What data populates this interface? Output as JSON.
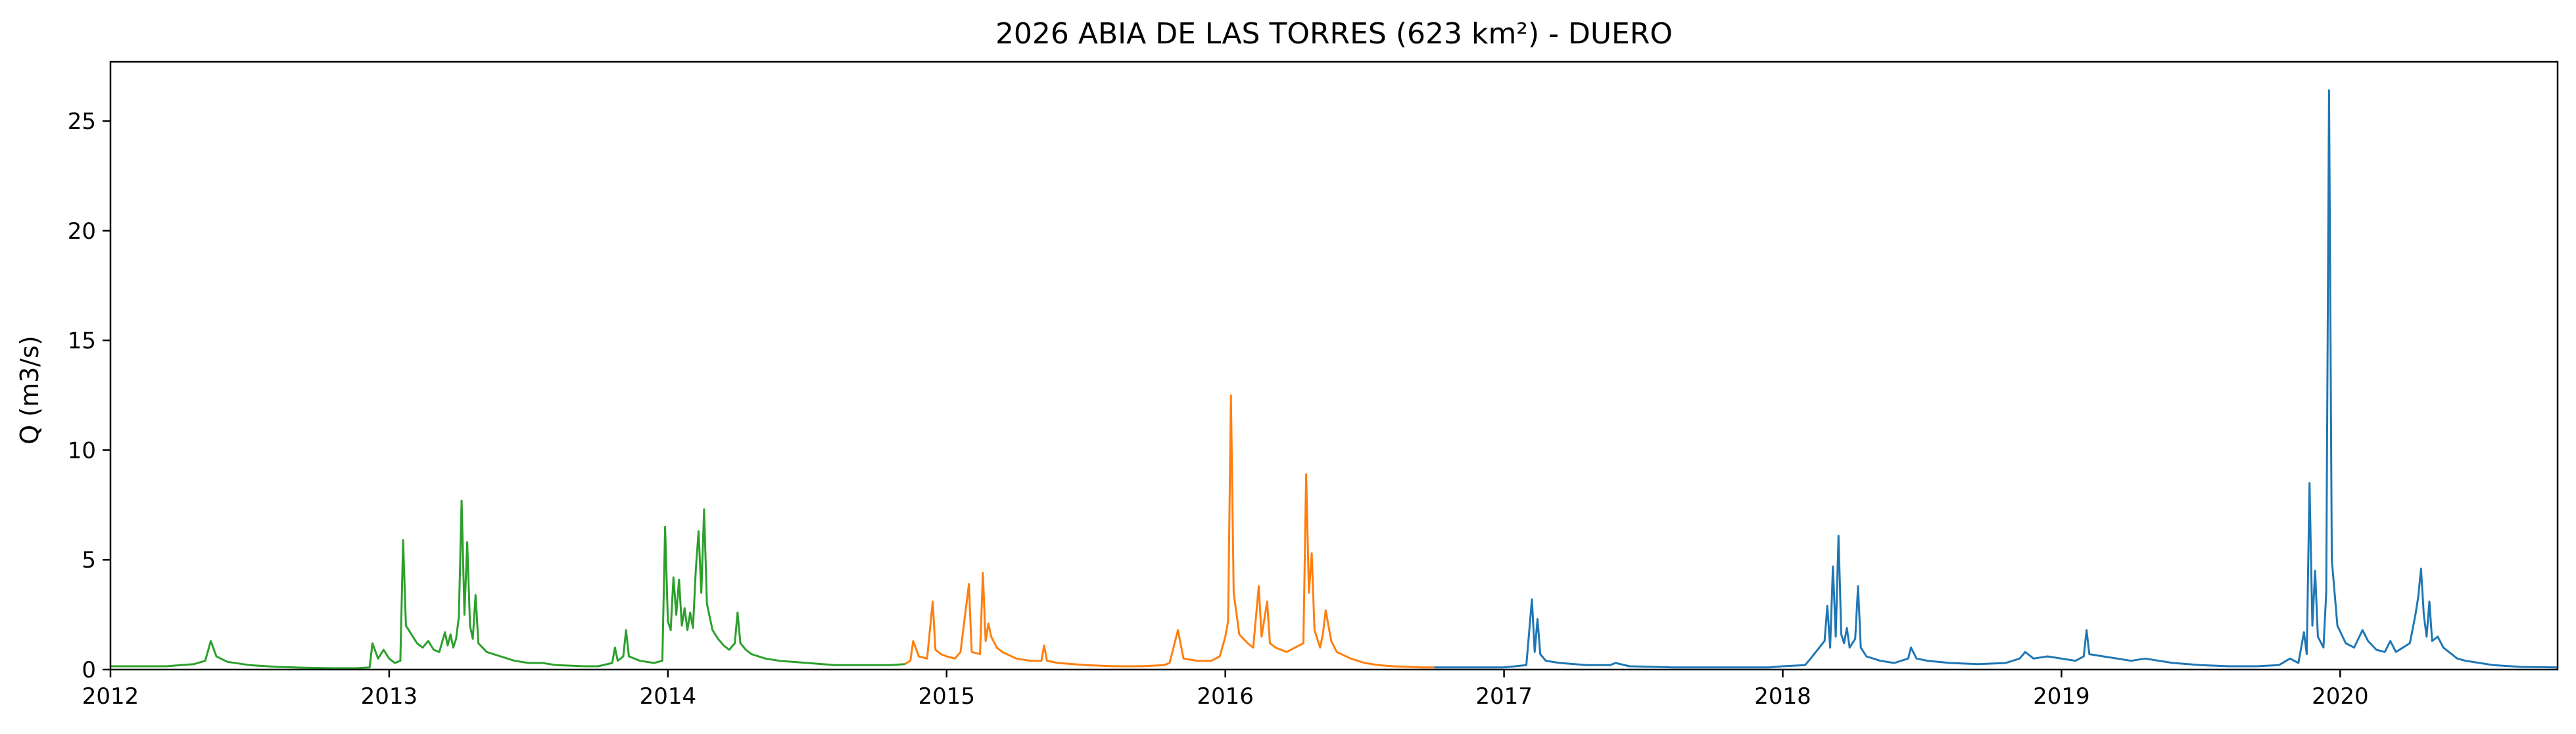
{
  "chart_data": {
    "type": "line",
    "title": "2026 ABIA DE LAS TORRES (623 km²) - DUERO",
    "xlabel": "",
    "ylabel": "Q (m3/s)",
    "xlim": [
      2012.0,
      2020.78
    ],
    "ylim": [
      0,
      27.7
    ],
    "x_ticks": [
      2012,
      2013,
      2014,
      2015,
      2016,
      2017,
      2018,
      2019,
      2020
    ],
    "y_ticks": [
      0,
      5,
      10,
      15,
      20,
      25
    ],
    "grid": false,
    "legend": "none",
    "series": [
      {
        "color": "#2ca02c",
        "points": [
          [
            2012.0,
            0.15
          ],
          [
            2012.08,
            0.15
          ],
          [
            2012.2,
            0.15
          ],
          [
            2012.3,
            0.25
          ],
          [
            2012.34,
            0.4
          ],
          [
            2012.36,
            1.3
          ],
          [
            2012.38,
            0.6
          ],
          [
            2012.42,
            0.35
          ],
          [
            2012.5,
            0.2
          ],
          [
            2012.6,
            0.12
          ],
          [
            2012.7,
            0.08
          ],
          [
            2012.8,
            0.06
          ],
          [
            2012.88,
            0.06
          ],
          [
            2012.93,
            0.1
          ],
          [
            2012.94,
            1.2
          ],
          [
            2012.96,
            0.5
          ],
          [
            2012.98,
            0.9
          ],
          [
            2013.0,
            0.5
          ],
          [
            2013.02,
            0.3
          ],
          [
            2013.04,
            0.4
          ],
          [
            2013.05,
            5.9
          ],
          [
            2013.06,
            2.0
          ],
          [
            2013.08,
            1.6
          ],
          [
            2013.1,
            1.2
          ],
          [
            2013.12,
            1.0
          ],
          [
            2013.14,
            1.3
          ],
          [
            2013.16,
            0.9
          ],
          [
            2013.18,
            0.8
          ],
          [
            2013.2,
            1.7
          ],
          [
            2013.21,
            1.1
          ],
          [
            2013.22,
            1.6
          ],
          [
            2013.23,
            1.0
          ],
          [
            2013.24,
            1.4
          ],
          [
            2013.25,
            2.4
          ],
          [
            2013.26,
            7.7
          ],
          [
            2013.27,
            2.5
          ],
          [
            2013.28,
            5.8
          ],
          [
            2013.29,
            2.0
          ],
          [
            2013.3,
            1.4
          ],
          [
            2013.31,
            3.4
          ],
          [
            2013.32,
            1.2
          ],
          [
            2013.35,
            0.8
          ],
          [
            2013.4,
            0.6
          ],
          [
            2013.45,
            0.4
          ],
          [
            2013.5,
            0.3
          ],
          [
            2013.55,
            0.3
          ],
          [
            2013.6,
            0.2
          ],
          [
            2013.7,
            0.15
          ],
          [
            2013.75,
            0.15
          ],
          [
            2013.8,
            0.3
          ],
          [
            2013.81,
            1.0
          ],
          [
            2013.82,
            0.4
          ],
          [
            2013.84,
            0.6
          ],
          [
            2013.85,
            1.8
          ],
          [
            2013.86,
            0.6
          ],
          [
            2013.9,
            0.4
          ],
          [
            2013.95,
            0.3
          ],
          [
            2013.98,
            0.4
          ],
          [
            2013.99,
            6.5
          ],
          [
            2014.0,
            2.2
          ],
          [
            2014.01,
            1.8
          ],
          [
            2014.02,
            4.2
          ],
          [
            2014.03,
            2.5
          ],
          [
            2014.04,
            4.1
          ],
          [
            2014.05,
            2.0
          ],
          [
            2014.06,
            2.8
          ],
          [
            2014.07,
            1.8
          ],
          [
            2014.08,
            2.6
          ],
          [
            2014.09,
            1.9
          ],
          [
            2014.1,
            4.5
          ],
          [
            2014.11,
            6.3
          ],
          [
            2014.12,
            3.5
          ],
          [
            2014.13,
            7.3
          ],
          [
            2014.14,
            3.0
          ],
          [
            2014.16,
            1.8
          ],
          [
            2014.18,
            1.4
          ],
          [
            2014.2,
            1.1
          ],
          [
            2014.22,
            0.9
          ],
          [
            2014.24,
            1.2
          ],
          [
            2014.25,
            2.6
          ],
          [
            2014.26,
            1.2
          ],
          [
            2014.28,
            0.9
          ],
          [
            2014.3,
            0.7
          ],
          [
            2014.35,
            0.5
          ],
          [
            2014.4,
            0.4
          ],
          [
            2014.5,
            0.3
          ],
          [
            2014.6,
            0.2
          ],
          [
            2014.7,
            0.2
          ],
          [
            2014.8,
            0.2
          ],
          [
            2014.85,
            0.25
          ]
        ]
      },
      {
        "color": "#ff7f0e",
        "points": [
          [
            2014.85,
            0.25
          ],
          [
            2014.87,
            0.4
          ],
          [
            2014.88,
            1.3
          ],
          [
            2014.9,
            0.6
          ],
          [
            2014.93,
            0.5
          ],
          [
            2014.95,
            3.1
          ],
          [
            2014.96,
            0.9
          ],
          [
            2014.98,
            0.7
          ],
          [
            2015.0,
            0.6
          ],
          [
            2015.03,
            0.5
          ],
          [
            2015.05,
            0.8
          ],
          [
            2015.08,
            3.9
          ],
          [
            2015.09,
            0.8
          ],
          [
            2015.12,
            0.7
          ],
          [
            2015.13,
            4.4
          ],
          [
            2015.14,
            1.3
          ],
          [
            2015.15,
            2.1
          ],
          [
            2015.16,
            1.5
          ],
          [
            2015.18,
            1.0
          ],
          [
            2015.2,
            0.8
          ],
          [
            2015.25,
            0.5
          ],
          [
            2015.3,
            0.4
          ],
          [
            2015.34,
            0.4
          ],
          [
            2015.35,
            1.1
          ],
          [
            2015.36,
            0.4
          ],
          [
            2015.4,
            0.3
          ],
          [
            2015.5,
            0.2
          ],
          [
            2015.6,
            0.15
          ],
          [
            2015.7,
            0.15
          ],
          [
            2015.78,
            0.2
          ],
          [
            2015.8,
            0.3
          ],
          [
            2015.83,
            1.8
          ],
          [
            2015.85,
            0.5
          ],
          [
            2015.9,
            0.4
          ],
          [
            2015.95,
            0.4
          ],
          [
            2015.98,
            0.6
          ],
          [
            2016.0,
            1.5
          ],
          [
            2016.01,
            2.2
          ],
          [
            2016.02,
            12.5
          ],
          [
            2016.03,
            3.5
          ],
          [
            2016.05,
            1.6
          ],
          [
            2016.08,
            1.2
          ],
          [
            2016.1,
            1.0
          ],
          [
            2016.12,
            3.8
          ],
          [
            2016.13,
            1.5
          ],
          [
            2016.15,
            3.1
          ],
          [
            2016.16,
            1.2
          ],
          [
            2016.18,
            1.0
          ],
          [
            2016.2,
            0.9
          ],
          [
            2016.22,
            0.8
          ],
          [
            2016.25,
            1.0
          ],
          [
            2016.28,
            1.2
          ],
          [
            2016.29,
            8.9
          ],
          [
            2016.3,
            3.5
          ],
          [
            2016.31,
            5.3
          ],
          [
            2016.32,
            1.8
          ],
          [
            2016.34,
            1.0
          ],
          [
            2016.35,
            1.6
          ],
          [
            2016.36,
            2.7
          ],
          [
            2016.38,
            1.3
          ],
          [
            2016.4,
            0.8
          ],
          [
            2016.45,
            0.5
          ],
          [
            2016.5,
            0.3
          ],
          [
            2016.55,
            0.2
          ],
          [
            2016.6,
            0.15
          ],
          [
            2016.7,
            0.1
          ],
          [
            2016.75,
            0.1
          ]
        ]
      },
      {
        "color": "#1f77b4",
        "points": [
          [
            2016.75,
            0.1
          ],
          [
            2016.9,
            0.1
          ],
          [
            2017.0,
            0.1
          ],
          [
            2017.08,
            0.2
          ],
          [
            2017.1,
            3.2
          ],
          [
            2017.11,
            0.8
          ],
          [
            2017.12,
            2.3
          ],
          [
            2017.13,
            0.7
          ],
          [
            2017.15,
            0.4
          ],
          [
            2017.2,
            0.3
          ],
          [
            2017.3,
            0.2
          ],
          [
            2017.38,
            0.2
          ],
          [
            2017.4,
            0.3
          ],
          [
            2017.45,
            0.15
          ],
          [
            2017.6,
            0.1
          ],
          [
            2017.8,
            0.1
          ],
          [
            2017.95,
            0.1
          ],
          [
            2018.0,
            0.15
          ],
          [
            2018.08,
            0.2
          ],
          [
            2018.1,
            0.5
          ],
          [
            2018.15,
            1.3
          ],
          [
            2018.16,
            2.9
          ],
          [
            2018.17,
            1.0
          ],
          [
            2018.18,
            4.7
          ],
          [
            2018.19,
            1.5
          ],
          [
            2018.2,
            6.1
          ],
          [
            2018.21,
            1.6
          ],
          [
            2018.22,
            1.2
          ],
          [
            2018.23,
            1.9
          ],
          [
            2018.24,
            1.0
          ],
          [
            2018.26,
            1.4
          ],
          [
            2018.27,
            3.8
          ],
          [
            2018.28,
            1.0
          ],
          [
            2018.3,
            0.6
          ],
          [
            2018.35,
            0.4
          ],
          [
            2018.4,
            0.3
          ],
          [
            2018.45,
            0.5
          ],
          [
            2018.46,
            1.0
          ],
          [
            2018.48,
            0.5
          ],
          [
            2018.52,
            0.4
          ],
          [
            2018.6,
            0.3
          ],
          [
            2018.7,
            0.25
          ],
          [
            2018.8,
            0.3
          ],
          [
            2018.85,
            0.5
          ],
          [
            2018.87,
            0.8
          ],
          [
            2018.9,
            0.5
          ],
          [
            2018.95,
            0.6
          ],
          [
            2019.0,
            0.5
          ],
          [
            2019.05,
            0.4
          ],
          [
            2019.08,
            0.6
          ],
          [
            2019.09,
            1.8
          ],
          [
            2019.1,
            0.7
          ],
          [
            2019.15,
            0.6
          ],
          [
            2019.2,
            0.5
          ],
          [
            2019.25,
            0.4
          ],
          [
            2019.3,
            0.5
          ],
          [
            2019.35,
            0.4
          ],
          [
            2019.4,
            0.3
          ],
          [
            2019.5,
            0.2
          ],
          [
            2019.6,
            0.15
          ],
          [
            2019.7,
            0.15
          ],
          [
            2019.78,
            0.2
          ],
          [
            2019.82,
            0.5
          ],
          [
            2019.85,
            0.3
          ],
          [
            2019.87,
            1.7
          ],
          [
            2019.88,
            0.7
          ],
          [
            2019.89,
            8.5
          ],
          [
            2019.9,
            2.0
          ],
          [
            2019.91,
            4.5
          ],
          [
            2019.92,
            1.5
          ],
          [
            2019.94,
            1.0
          ],
          [
            2019.95,
            3.5
          ],
          [
            2019.96,
            26.4
          ],
          [
            2019.97,
            5.0
          ],
          [
            2019.99,
            2.0
          ],
          [
            2020.02,
            1.2
          ],
          [
            2020.05,
            1.0
          ],
          [
            2020.08,
            1.8
          ],
          [
            2020.1,
            1.3
          ],
          [
            2020.13,
            0.9
          ],
          [
            2020.16,
            0.8
          ],
          [
            2020.18,
            1.3
          ],
          [
            2020.2,
            0.8
          ],
          [
            2020.25,
            1.2
          ],
          [
            2020.27,
            2.5
          ],
          [
            2020.28,
            3.3
          ],
          [
            2020.29,
            4.6
          ],
          [
            2020.3,
            2.5
          ],
          [
            2020.31,
            1.5
          ],
          [
            2020.32,
            3.1
          ],
          [
            2020.33,
            1.3
          ],
          [
            2020.35,
            1.5
          ],
          [
            2020.37,
            1.0
          ],
          [
            2020.4,
            0.7
          ],
          [
            2020.42,
            0.5
          ],
          [
            2020.45,
            0.4
          ],
          [
            2020.5,
            0.3
          ],
          [
            2020.55,
            0.2
          ],
          [
            2020.65,
            0.12
          ],
          [
            2020.78,
            0.1
          ]
        ]
      }
    ]
  }
}
